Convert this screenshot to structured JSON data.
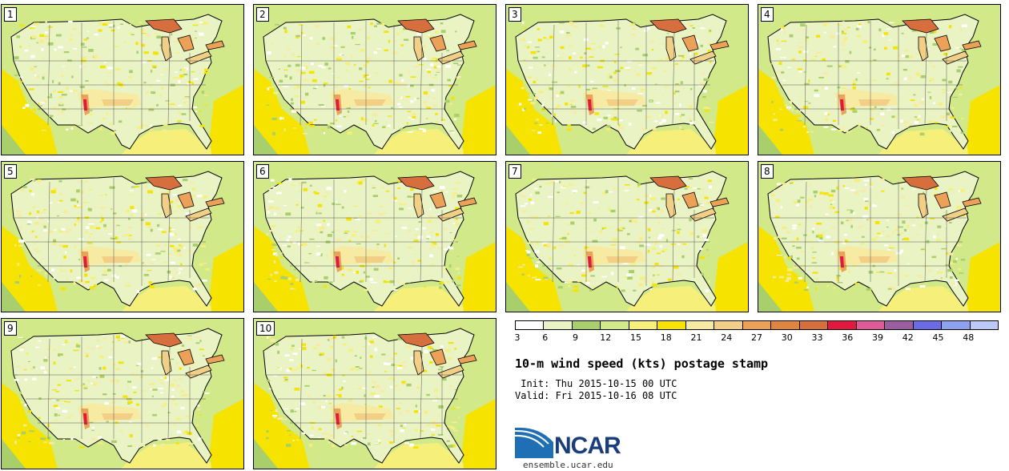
{
  "panels": [
    "1",
    "2",
    "3",
    "4",
    "5",
    "6",
    "7",
    "8",
    "9",
    "10"
  ],
  "colorbar": {
    "ticks": [
      "3",
      "6",
      "9",
      "12",
      "15",
      "18",
      "21",
      "24",
      "27",
      "30",
      "33",
      "36",
      "39",
      "42",
      "45",
      "48"
    ],
    "colors": [
      "#ffffff",
      "#e9f3c4",
      "#a8cf6b",
      "#d2e98a",
      "#f6f07a",
      "#f6e300",
      "#f7eba3",
      "#f2cf86",
      "#eba258",
      "#e08540",
      "#d66f3d",
      "#e2183e",
      "#e05a9a",
      "#9a5e9e",
      "#6b6be8",
      "#8ca2ef",
      "#bcc9f6"
    ]
  },
  "title": "10-m wind speed (kts) postage stamp",
  "init": " Init: Thu 2015-10-15 00 UTC",
  "valid": "Valid: Fri 2015-10-16 08 UTC",
  "logo": {
    "text": "NCAR",
    "site": "ensemble.ucar.edu"
  }
}
